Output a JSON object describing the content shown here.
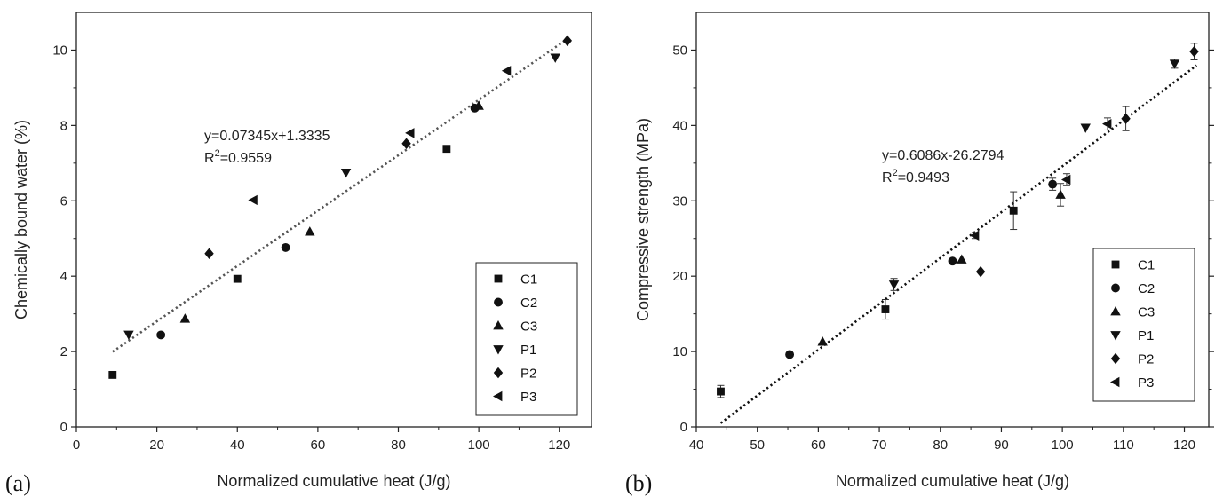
{
  "chart_data": [
    {
      "panel_label": "(a)",
      "type": "scatter",
      "xlabel": "Normalized cumulative heat (J/g)",
      "ylabel": "Chemically bound water (%)",
      "xlim": [
        0,
        128
      ],
      "ylim": [
        0,
        11
      ],
      "xticks": [
        0,
        20,
        40,
        60,
        80,
        100,
        120
      ],
      "yticks": [
        0,
        2,
        4,
        6,
        8,
        10
      ],
      "grid": false,
      "legend_position": "bottom-right",
      "fit": {
        "slope": 0.07345,
        "intercept": 1.3335,
        "x_range": [
          9,
          122
        ],
        "equation": "y=0.07345x+1.3335",
        "r2_prefix": "R",
        "r2_sup": "2",
        "r2_value": "=0.9559"
      },
      "series": [
        {
          "name": "C1",
          "marker": "square",
          "points": [
            [
              9,
              1.38
            ],
            [
              40,
              3.93
            ],
            [
              92,
              7.38
            ]
          ]
        },
        {
          "name": "C2",
          "marker": "circle",
          "points": [
            [
              21,
              2.44
            ],
            [
              52,
              4.76
            ],
            [
              99,
              8.46
            ]
          ]
        },
        {
          "name": "C3",
          "marker": "triangle-up",
          "points": [
            [
              27,
              2.87
            ],
            [
              58,
              5.18
            ],
            [
              100,
              8.52
            ]
          ]
        },
        {
          "name": "P1",
          "marker": "triangle-down",
          "points": [
            [
              13,
              2.45
            ],
            [
              67,
              6.75
            ],
            [
              119,
              9.8
            ]
          ]
        },
        {
          "name": "P2",
          "marker": "diamond",
          "points": [
            [
              33,
              4.6
            ],
            [
              82,
              7.52
            ],
            [
              122,
              10.25
            ]
          ]
        },
        {
          "name": "P3",
          "marker": "triangle-left",
          "points": [
            [
              44,
              6.02
            ],
            [
              83,
              7.8
            ],
            [
              107,
              9.45
            ]
          ]
        }
      ]
    },
    {
      "panel_label": "(b)",
      "type": "scatter",
      "xlabel": "Normalized cumulative heat (J/g)",
      "ylabel": "Compressive strength (MPa)",
      "xlim": [
        40,
        124
      ],
      "ylim": [
        0,
        55
      ],
      "xticks": [
        40,
        50,
        60,
        70,
        80,
        90,
        100,
        110,
        120
      ],
      "yticks": [
        0,
        10,
        20,
        30,
        40,
        50
      ],
      "grid": false,
      "legend_position": "bottom-right",
      "fit": {
        "slope": 0.6086,
        "intercept": -26.2794,
        "x_range": [
          44,
          122
        ],
        "equation": "y=0.6086x-26.2794",
        "r2_prefix": "R",
        "r2_sup": "2",
        "r2_value": "=0.9493"
      },
      "series": [
        {
          "name": "C1",
          "marker": "square",
          "points": [
            [
              44,
              4.7,
              0.8
            ],
            [
              71,
              15.6,
              1.3
            ],
            [
              92,
              28.7,
              2.5
            ]
          ]
        },
        {
          "name": "C2",
          "marker": "circle",
          "points": [
            [
              55.3,
              9.6,
              0
            ],
            [
              82,
              22.0,
              0
            ],
            [
              98.4,
              32.2,
              0.8
            ]
          ]
        },
        {
          "name": "C3",
          "marker": "triangle-up",
          "points": [
            [
              60.7,
              11.3,
              0
            ],
            [
              83.5,
              22.2,
              0
            ],
            [
              99.7,
              30.8,
              1.5
            ]
          ]
        },
        {
          "name": "P1",
          "marker": "triangle-down",
          "points": [
            [
              72.4,
              18.9,
              0.8
            ],
            [
              103.8,
              39.7,
              0
            ],
            [
              118.4,
              48.2,
              0.6
            ]
          ]
        },
        {
          "name": "P2",
          "marker": "diamond",
          "points": [
            [
              86.6,
              20.6,
              0
            ],
            [
              110.4,
              40.9,
              1.6
            ],
            [
              121.6,
              49.8,
              1.1
            ]
          ]
        },
        {
          "name": "P3",
          "marker": "triangle-left",
          "points": [
            [
              85.7,
              25.4,
              0.4
            ],
            [
              100.7,
              32.8,
              0.8
            ],
            [
              107.4,
              40.2,
              0.8
            ]
          ]
        }
      ]
    }
  ]
}
